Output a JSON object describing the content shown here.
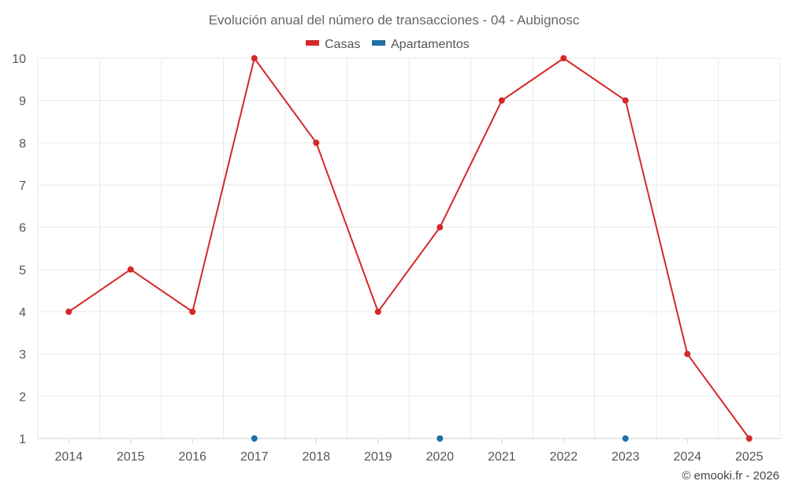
{
  "chart_data": {
    "type": "line",
    "title": "Evolución anual del número de transacciones - 04 - Aubignosc",
    "categories": [
      "2014",
      "2015",
      "2016",
      "2017",
      "2018",
      "2019",
      "2020",
      "2021",
      "2022",
      "2023",
      "2024",
      "2025"
    ],
    "series": [
      {
        "name": "Casas",
        "color": "#d62728",
        "values": [
          4,
          5,
          4,
          10,
          8,
          4,
          6,
          9,
          10,
          9,
          3,
          1
        ]
      },
      {
        "name": "Apartamentos",
        "color": "#1f6fa5",
        "values": [
          null,
          null,
          null,
          1,
          null,
          null,
          1,
          null,
          null,
          1,
          null,
          null
        ]
      }
    ],
    "ylim": [
      1,
      10
    ],
    "yticks": [
      "1",
      "2",
      "3",
      "4",
      "5",
      "6",
      "7",
      "8",
      "9",
      "10"
    ],
    "xlabel": "",
    "ylabel": "",
    "grid": true,
    "legend": "top-center"
  },
  "credit": "© emooki.fr - 2026"
}
